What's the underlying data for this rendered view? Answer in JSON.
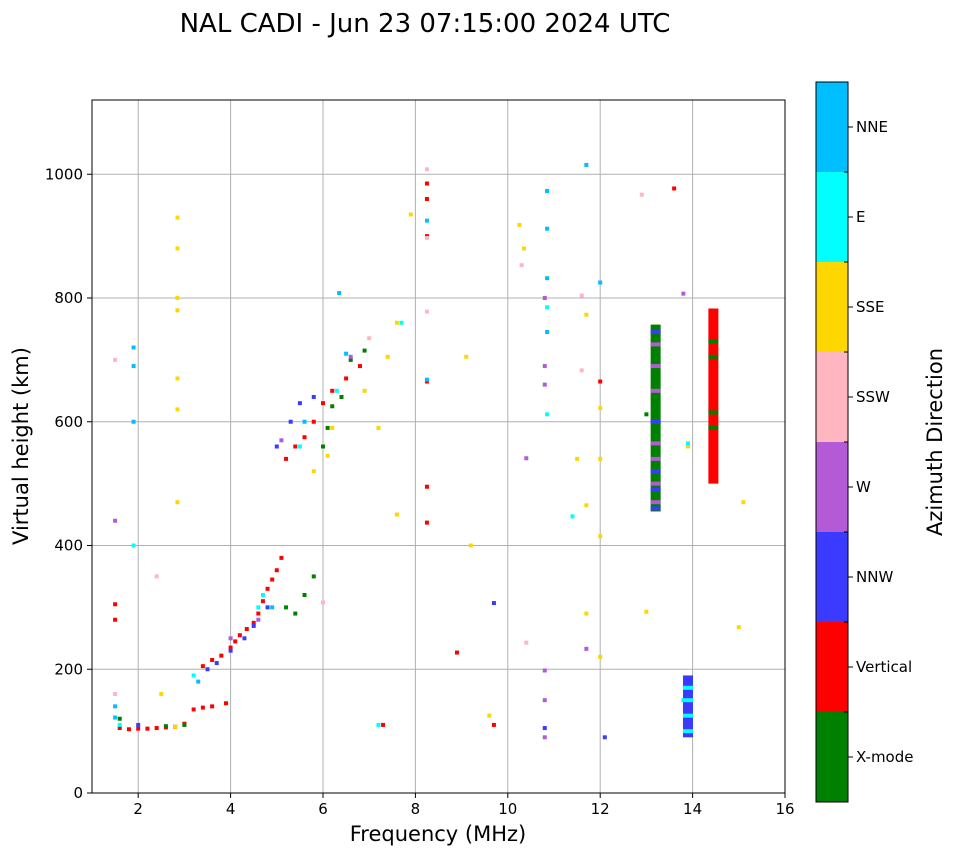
{
  "chart_data": {
    "type": "scatter",
    "title": "NAL CADI - Jun 23 07:15:00 2024 UTC",
    "xlabel": "Frequency (MHz)",
    "ylabel": "Virtual height (km)",
    "xlim": [
      1,
      16
    ],
    "ylim": [
      0,
      1120
    ],
    "xticks": [
      2,
      4,
      6,
      8,
      10,
      12,
      14,
      16
    ],
    "yticks": [
      0,
      200,
      400,
      600,
      800,
      1000
    ],
    "grid": true,
    "colorbar": {
      "label": "Azimuth Direction",
      "categories": [
        {
          "name": "X-mode",
          "color": "#008000"
        },
        {
          "name": "Vertical",
          "color": "#ff0000"
        },
        {
          "name": "NNW",
          "color": "#3b3bff"
        },
        {
          "name": "W",
          "color": "#b45ad6"
        },
        {
          "name": "SSW",
          "color": "#ffb6c1"
        },
        {
          "name": "SSE",
          "color": "#ffd700"
        },
        {
          "name": "E",
          "color": "#00ffff"
        },
        {
          "name": "NNE",
          "color": "#00bfff"
        }
      ]
    },
    "traces": [
      {
        "direction": "Vertical",
        "points": [
          [
            1.6,
            105
          ],
          [
            1.8,
            103
          ],
          [
            2.0,
            104
          ],
          [
            2.2,
            104
          ],
          [
            2.4,
            105
          ],
          [
            2.6,
            106
          ],
          [
            2.8,
            107
          ],
          [
            3.0,
            112
          ],
          [
            3.2,
            135
          ],
          [
            3.4,
            138
          ],
          [
            3.6,
            140
          ],
          [
            3.9,
            145
          ],
          [
            3.4,
            205
          ],
          [
            3.6,
            215
          ],
          [
            3.8,
            222
          ],
          [
            4.0,
            235
          ],
          [
            4.1,
            245
          ],
          [
            4.2,
            255
          ],
          [
            4.35,
            265
          ],
          [
            4.5,
            275
          ],
          [
            4.6,
            290
          ],
          [
            4.7,
            310
          ],
          [
            4.8,
            330
          ],
          [
            4.9,
            345
          ],
          [
            5.0,
            360
          ],
          [
            5.1,
            380
          ],
          [
            5.2,
            540
          ],
          [
            5.4,
            560
          ],
          [
            5.6,
            575
          ],
          [
            5.8,
            600
          ],
          [
            6.0,
            630
          ],
          [
            6.2,
            650
          ],
          [
            6.5,
            670
          ],
          [
            6.8,
            690
          ],
          [
            8.25,
            985
          ],
          [
            8.25,
            960
          ],
          [
            8.25,
            900
          ],
          [
            8.25,
            665
          ],
          [
            8.25,
            495
          ],
          [
            8.25,
            437
          ],
          [
            8.9,
            227
          ],
          [
            9.7,
            110
          ],
          [
            12.0,
            665
          ],
          [
            13.6,
            977
          ],
          [
            1.5,
            280
          ],
          [
            1.5,
            305
          ],
          [
            7.3,
            110
          ]
        ]
      },
      {
        "direction": "X-mode",
        "points": [
          [
            5.2,
            300
          ],
          [
            5.4,
            290
          ],
          [
            5.6,
            320
          ],
          [
            5.8,
            350
          ],
          [
            6.0,
            560
          ],
          [
            6.1,
            590
          ],
          [
            6.2,
            625
          ],
          [
            6.4,
            640
          ],
          [
            6.6,
            700
          ],
          [
            6.9,
            715
          ],
          [
            13.0,
            612
          ],
          [
            3.0,
            110
          ],
          [
            2.6,
            108
          ],
          [
            1.6,
            120
          ]
        ]
      },
      {
        "direction": "NNW",
        "points": [
          [
            3.5,
            200
          ],
          [
            3.7,
            210
          ],
          [
            4.0,
            230
          ],
          [
            4.3,
            250
          ],
          [
            4.5,
            270
          ],
          [
            4.8,
            300
          ],
          [
            5.0,
            560
          ],
          [
            5.3,
            600
          ],
          [
            5.5,
            630
          ],
          [
            5.8,
            640
          ],
          [
            9.7,
            307
          ],
          [
            12.1,
            90
          ],
          [
            10.8,
            105
          ],
          [
            2.0,
            110
          ]
        ]
      },
      {
        "direction": "W",
        "points": [
          [
            4.0,
            250
          ],
          [
            4.6,
            280
          ],
          [
            5.1,
            570
          ],
          [
            6.6,
            705
          ],
          [
            10.4,
            541
          ],
          [
            10.8,
            800
          ],
          [
            10.8,
            690
          ],
          [
            10.8,
            660
          ],
          [
            10.8,
            198
          ],
          [
            10.8,
            150
          ],
          [
            10.8,
            90
          ],
          [
            11.7,
            233
          ],
          [
            13.8,
            807
          ],
          [
            1.5,
            440
          ]
        ]
      },
      {
        "direction": "SSW",
        "points": [
          [
            1.5,
            160
          ],
          [
            1.5,
            700
          ],
          [
            2.4,
            350
          ],
          [
            6.0,
            308
          ],
          [
            7.0,
            735
          ],
          [
            8.25,
            1008
          ],
          [
            8.25,
            897
          ],
          [
            8.25,
            778
          ],
          [
            10.3,
            853
          ],
          [
            10.4,
            243
          ],
          [
            11.6,
            804
          ],
          [
            12.9,
            967
          ],
          [
            11.6,
            683
          ]
        ]
      },
      {
        "direction": "SSE",
        "points": [
          [
            2.85,
            930
          ],
          [
            2.85,
            880
          ],
          [
            2.85,
            800
          ],
          [
            2.85,
            780
          ],
          [
            2.85,
            670
          ],
          [
            2.85,
            620
          ],
          [
            2.85,
            470
          ],
          [
            2.5,
            160
          ],
          [
            5.8,
            520
          ],
          [
            6.1,
            545
          ],
          [
            6.2,
            590
          ],
          [
            6.9,
            650
          ],
          [
            7.4,
            705
          ],
          [
            7.6,
            450
          ],
          [
            7.9,
            935
          ],
          [
            9.1,
            705
          ],
          [
            9.2,
            400
          ],
          [
            9.6,
            125
          ],
          [
            10.25,
            918
          ],
          [
            10.35,
            880
          ],
          [
            11.5,
            540
          ],
          [
            11.7,
            773
          ],
          [
            11.7,
            465
          ],
          [
            11.7,
            290
          ],
          [
            12.0,
            622
          ],
          [
            12.0,
            540
          ],
          [
            12.0,
            415
          ],
          [
            12.0,
            220
          ],
          [
            13.0,
            293
          ],
          [
            13.9,
            560
          ],
          [
            15.0,
            268
          ],
          [
            15.1,
            470
          ],
          [
            7.6,
            760
          ],
          [
            7.2,
            590
          ],
          [
            2.8,
            107
          ]
        ]
      },
      {
        "direction": "E",
        "points": [
          [
            1.6,
            110
          ],
          [
            3.2,
            190
          ],
          [
            4.6,
            300
          ],
          [
            4.7,
            320
          ],
          [
            5.5,
            560
          ],
          [
            6.3,
            650
          ],
          [
            7.7,
            760
          ],
          [
            7.2,
            110
          ],
          [
            10.85,
            612
          ],
          [
            10.85,
            785
          ],
          [
            11.4,
            447
          ],
          [
            13.9,
            565
          ],
          [
            13.8,
            150
          ],
          [
            1.9,
            400
          ]
        ]
      },
      {
        "direction": "NNE",
        "points": [
          [
            1.5,
            140
          ],
          [
            1.5,
            122
          ],
          [
            1.9,
            720
          ],
          [
            1.9,
            690
          ],
          [
            1.9,
            600
          ],
          [
            3.3,
            180
          ],
          [
            4.9,
            300
          ],
          [
            5.6,
            600
          ],
          [
            6.35,
            808
          ],
          [
            6.5,
            710
          ],
          [
            8.25,
            925
          ],
          [
            8.25,
            668
          ],
          [
            10.85,
            973
          ],
          [
            10.85,
            912
          ],
          [
            10.85,
            832
          ],
          [
            10.85,
            745
          ],
          [
            11.7,
            1015
          ],
          [
            12.0,
            825
          ]
        ]
      }
    ],
    "bars": [
      {
        "direction": "X-mode",
        "freq": 13.2,
        "from": 455,
        "to": 757
      },
      {
        "direction": "NNW",
        "freq": 13.9,
        "from": 90,
        "to": 190
      },
      {
        "direction": "Vertical",
        "freq": 14.45,
        "from": 500,
        "to": 783
      }
    ],
    "bar_bands": [
      {
        "direction": "W",
        "freq": 13.2,
        "at": [
          470,
          500,
          540,
          565,
          650,
          690,
          725
        ]
      },
      {
        "direction": "NNW",
        "freq": 13.2,
        "at": [
          460,
          490,
          520,
          600,
          745
        ]
      },
      {
        "direction": "E",
        "freq": 13.9,
        "at": [
          100,
          125,
          150,
          170
        ]
      },
      {
        "direction": "X-mode",
        "freq": 14.45,
        "at": [
          590,
          615,
          705,
          730
        ]
      }
    ]
  }
}
